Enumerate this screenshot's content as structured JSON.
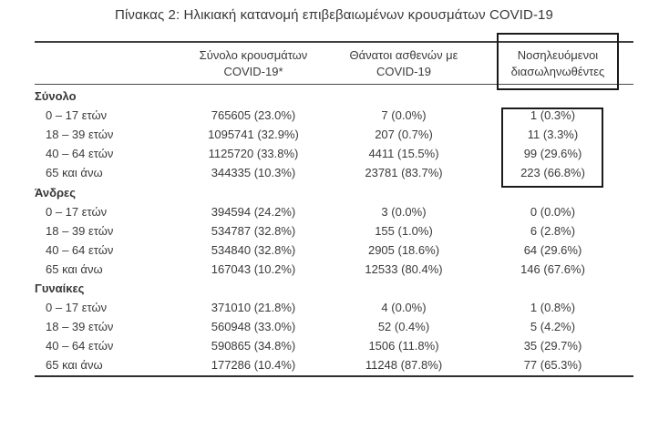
{
  "title": "Πίνακας 2: Ηλικιακή κατανομή επιβεβαιωμένων κρουσμάτων COVID-19",
  "table": {
    "col_headers": [
      {
        "line1": "Σύνολο κρουσμάτων",
        "line2": "COVID-19*"
      },
      {
        "line1": "Θάνατοι ασθενών με",
        "line2": "COVID-19"
      },
      {
        "line1": "Νοσηλευόμενοι",
        "line2": "διασωληνωθέντες"
      }
    ],
    "sections": [
      {
        "label": "Σύνολο",
        "rows": [
          {
            "age": "0 – 17 ετών",
            "cases": "765605 (23.0%)",
            "deaths": "7 (0.0%)",
            "intubated": "1 (0.3%)"
          },
          {
            "age": "18 – 39 ετών",
            "cases": "1095741 (32.9%)",
            "deaths": "207 (0.7%)",
            "intubated": "11 (3.3%)"
          },
          {
            "age": "40 – 64 ετών",
            "cases": "1125720 (33.8%)",
            "deaths": "4411 (15.5%)",
            "intubated": "99 (29.6%)"
          },
          {
            "age": "65 και άνω",
            "cases": "344335 (10.3%)",
            "deaths": "23781 (83.7%)",
            "intubated": "223 (66.8%)"
          }
        ]
      },
      {
        "label": "Άνδρες",
        "rows": [
          {
            "age": "0 – 17 ετών",
            "cases": "394594 (24.2%)",
            "deaths": "3 (0.0%)",
            "intubated": "0 (0.0%)"
          },
          {
            "age": "18 – 39 ετών",
            "cases": "534787 (32.8%)",
            "deaths": "155 (1.0%)",
            "intubated": "6 (2.8%)"
          },
          {
            "age": "40 – 64 ετών",
            "cases": "534840 (32.8%)",
            "deaths": "2905 (18.6%)",
            "intubated": "64 (29.6%)"
          },
          {
            "age": "65 και άνω",
            "cases": "167043 (10.2%)",
            "deaths": "12533 (80.4%)",
            "intubated": "146 (67.6%)"
          }
        ]
      },
      {
        "label": "Γυναίκες",
        "rows": [
          {
            "age": "0 – 17 ετών",
            "cases": "371010 (21.8%)",
            "deaths": "4 (0.0%)",
            "intubated": "1 (0.8%)"
          },
          {
            "age": "18 – 39 ετών",
            "cases": "560948 (33.0%)",
            "deaths": "52 (0.4%)",
            "intubated": "5 (4.2%)"
          },
          {
            "age": "40 – 64 ετών",
            "cases": "590865 (34.8%)",
            "deaths": "1506 (11.8%)",
            "intubated": "35 (29.7%)"
          },
          {
            "age": "65 και άνω",
            "cases": "177286 (10.4%)",
            "deaths": "11248 (87.8%)",
            "intubated": "77 (65.3%)"
          }
        ]
      }
    ],
    "highlight_border_color": "#1a1a1a",
    "text_color": "#3a3a3a"
  }
}
